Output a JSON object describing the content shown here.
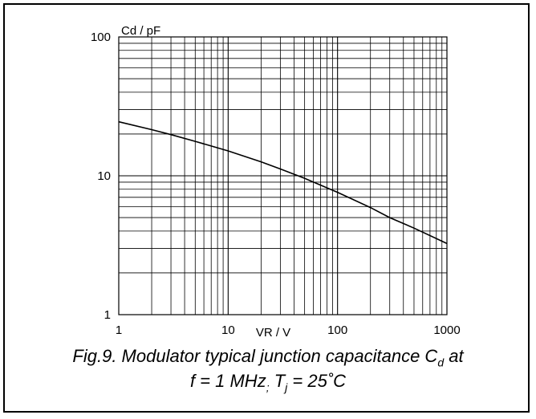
{
  "chart_data": {
    "type": "line",
    "title": "",
    "xlabel": "VR / V",
    "ylabel": "Cd / pF",
    "x_scale": "log",
    "y_scale": "log",
    "xlim": [
      1,
      1000
    ],
    "ylim": [
      1,
      100
    ],
    "x_ticks": [
      "1",
      "10",
      "100",
      "1000"
    ],
    "y_ticks": [
      "1",
      "10",
      "100"
    ],
    "grid": true,
    "series": [
      {
        "name": "",
        "x": [
          1,
          2,
          3,
          5,
          10,
          20,
          30,
          50,
          100,
          200,
          300,
          500,
          1000
        ],
        "y": [
          24.5,
          21.5,
          19.8,
          17.7,
          15.1,
          12.6,
          11.2,
          9.6,
          7.6,
          5.9,
          5.0,
          4.2,
          3.25
        ]
      }
    ]
  },
  "caption": {
    "line1_main": "Fig.9.  Modulator typical junction capacitance C",
    "line1_sub": "d",
    "line1_tail": " at",
    "line2_main": "f = 1 MHz",
    "line2_sep": ";",
    "line2_t": " T",
    "line2_sub": "j",
    "line2_tail": " = 25˚C"
  }
}
